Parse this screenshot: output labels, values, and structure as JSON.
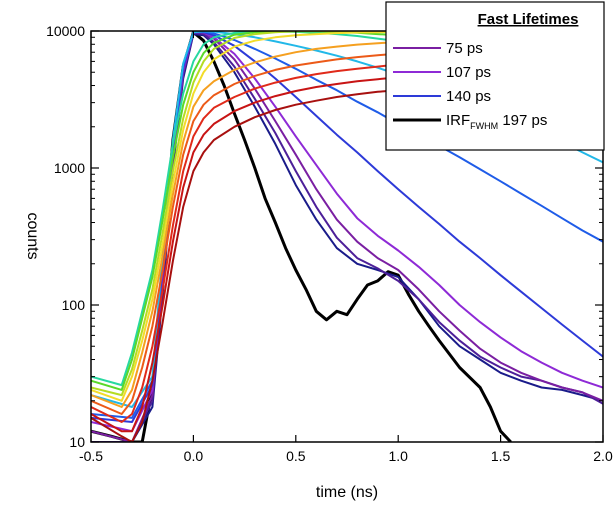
{
  "chart_data": {
    "type": "line",
    "title": "",
    "xlabel": "time (ns)",
    "ylabel": "counts",
    "x_scale": "linear",
    "y_scale": "log",
    "xlim": [
      -0.5,
      2.0
    ],
    "ylim": [
      10,
      10000
    ],
    "x_ticks": [
      "-0.5",
      "0.0",
      "0.5",
      "1.0",
      "1.5",
      "2.0"
    ],
    "y_ticks": [
      "10",
      "100",
      "1000",
      "10000"
    ],
    "grid": false,
    "legend": {
      "title": "Fast Lifetimes",
      "placement": "top-right",
      "entries": [
        {
          "label": "75 ps",
          "sub": "",
          "suffix": "",
          "color": "#7a1fa2"
        },
        {
          "label": "107 ps",
          "sub": "",
          "suffix": "",
          "color": "#8e2ad6"
        },
        {
          "label": "140 ps",
          "sub": "",
          "suffix": "",
          "color": "#2d3ad8"
        },
        {
          "label": "IRF",
          "sub": "FWHM",
          "suffix": " 197 ps",
          "color": "#000000"
        }
      ]
    },
    "series": [
      {
        "color": "#000000",
        "width": 3,
        "x": [
          -0.5,
          -0.4,
          -0.3,
          -0.25,
          -0.2,
          -0.15,
          -0.1,
          -0.05,
          0.0,
          0.05,
          0.1,
          0.15,
          0.2,
          0.25,
          0.3,
          0.35,
          0.4,
          0.45,
          0.5,
          0.55,
          0.6,
          0.65,
          0.7,
          0.75,
          0.8,
          0.85,
          0.9,
          0.95,
          1.0,
          1.05,
          1.1,
          1.15,
          1.2,
          1.3,
          1.4,
          1.45,
          1.5,
          1.55
        ],
        "y": [
          12,
          11,
          10,
          10,
          25,
          200,
          1600,
          5500,
          9800,
          8500,
          6000,
          4000,
          2500,
          1600,
          1000,
          600,
          400,
          260,
          180,
          130,
          90,
          78,
          90,
          85,
          110,
          140,
          150,
          175,
          165,
          120,
          90,
          70,
          55,
          35,
          25,
          18,
          12,
          10
        ]
      },
      {
        "color": "#1a1b8a",
        "width": 2,
        "x": [
          -0.5,
          -0.3,
          -0.2,
          -0.15,
          -0.1,
          -0.05,
          0.0,
          0.05,
          0.1,
          0.2,
          0.3,
          0.4,
          0.5,
          0.6,
          0.7,
          0.8,
          0.9,
          1.0,
          1.1,
          1.2,
          1.3,
          1.4,
          1.5,
          1.6,
          1.7,
          1.8,
          1.9,
          2.0
        ],
        "y": [
          10,
          10,
          18,
          120,
          1000,
          4500,
          9500,
          9300,
          8000,
          5000,
          2800,
          1500,
          750,
          420,
          260,
          200,
          180,
          160,
          110,
          70,
          50,
          40,
          32,
          28,
          25,
          24,
          22,
          20
        ]
      },
      {
        "color": "#4d1f99",
        "width": 2,
        "x": [
          -0.5,
          -0.3,
          -0.2,
          -0.15,
          -0.1,
          -0.05,
          0.0,
          0.05,
          0.1,
          0.2,
          0.3,
          0.4,
          0.5,
          0.6,
          0.7,
          0.8,
          0.9,
          1.0,
          1.1,
          1.2,
          1.3,
          1.4,
          1.5,
          1.6,
          1.7,
          1.8,
          1.9,
          2.0
        ],
        "y": [
          10,
          10,
          20,
          140,
          1100,
          4800,
          9700,
          9500,
          8300,
          5500,
          3200,
          1800,
          950,
          520,
          310,
          220,
          185,
          150,
          110,
          75,
          55,
          42,
          35,
          30,
          28,
          25,
          23,
          19
        ]
      },
      {
        "color": "#7a1fa2",
        "width": 2,
        "x": [
          -0.5,
          -0.3,
          -0.2,
          -0.15,
          -0.1,
          -0.05,
          0.0,
          0.05,
          0.1,
          0.2,
          0.3,
          0.4,
          0.5,
          0.6,
          0.7,
          0.8,
          0.9,
          1.0,
          1.1,
          1.2,
          1.3,
          1.4,
          1.5,
          1.6,
          1.7,
          1.8,
          1.9,
          2.0
        ],
        "y": [
          12,
          10,
          22,
          160,
          1200,
          5000,
          9800,
          9700,
          8800,
          6200,
          3800,
          2200,
          1250,
          700,
          420,
          290,
          220,
          180,
          130,
          90,
          65,
          48,
          38,
          32,
          28,
          25,
          23,
          20
        ]
      },
      {
        "color": "#8e2ad6",
        "width": 2,
        "x": [
          -0.5,
          -0.3,
          -0.2,
          -0.15,
          -0.1,
          -0.05,
          0.0,
          0.05,
          0.1,
          0.2,
          0.3,
          0.4,
          0.5,
          0.6,
          0.7,
          0.8,
          0.9,
          1.0,
          1.1,
          1.2,
          1.3,
          1.4,
          1.5,
          1.6,
          1.7,
          1.8,
          1.9,
          2.0
        ],
        "y": [
          14,
          12,
          24,
          180,
          1300,
          5200,
          9800,
          9750,
          9000,
          6800,
          4500,
          2800,
          1700,
          1050,
          650,
          430,
          320,
          250,
          190,
          140,
          100,
          75,
          58,
          46,
          38,
          32,
          28,
          25
        ]
      },
      {
        "color": "#2d3ad8",
        "width": 2,
        "x": [
          -0.5,
          -0.3,
          -0.2,
          -0.15,
          -0.1,
          -0.05,
          0.0,
          0.05,
          0.1,
          0.2,
          0.3,
          0.4,
          0.5,
          0.6,
          0.7,
          0.8,
          0.9,
          1.0,
          1.1,
          1.2,
          1.3,
          1.4,
          1.5,
          1.6,
          1.7,
          1.8,
          1.9,
          2.0
        ],
        "y": [
          15,
          14,
          26,
          200,
          1400,
          5400,
          9800,
          9800,
          9300,
          7800,
          6000,
          4500,
          3300,
          2400,
          1750,
          1300,
          950,
          700,
          520,
          390,
          290,
          220,
          165,
          125,
          95,
          72,
          55,
          42
        ]
      },
      {
        "color": "#1f5ce8",
        "width": 2,
        "x": [
          -0.5,
          -0.3,
          -0.2,
          -0.15,
          -0.1,
          -0.05,
          0.0,
          0.05,
          0.1,
          0.2,
          0.3,
          0.4,
          0.5,
          0.6,
          0.7,
          0.8,
          0.9,
          1.0,
          1.1,
          1.2,
          1.3,
          1.4,
          1.5,
          1.6,
          1.7,
          1.8,
          1.9,
          2.0
        ],
        "y": [
          16,
          15,
          28,
          220,
          1500,
          5600,
          9800,
          9900,
          9600,
          8600,
          7400,
          6300,
          5300,
          4400,
          3700,
          3050,
          2550,
          2100,
          1750,
          1450,
          1200,
          980,
          800,
          650,
          530,
          430,
          350,
          290
        ]
      },
      {
        "color": "#22b8e8",
        "width": 2,
        "x": [
          -0.5,
          -0.3,
          -0.2,
          -0.15,
          -0.1,
          -0.05,
          0.0,
          0.05,
          0.1,
          0.2,
          0.3,
          0.4,
          0.5,
          0.6,
          0.7,
          0.8,
          0.9,
          1.0,
          1.1,
          1.2,
          1.3,
          1.4,
          1.5,
          1.6,
          1.7,
          1.8,
          1.9,
          2.0
        ],
        "y": [
          22,
          18,
          30,
          240,
          1600,
          5800,
          9800,
          9950,
          9900,
          9500,
          9000,
          8400,
          7800,
          7200,
          6600,
          6000,
          5400,
          4800,
          4300,
          3800,
          3300,
          2850,
          2450,
          2100,
          1800,
          1550,
          1300,
          1100
        ]
      },
      {
        "color": "#27d8a0",
        "width": 2,
        "x": [
          -0.5,
          -0.35,
          -0.3,
          -0.25,
          -0.2,
          -0.15,
          -0.1,
          -0.05,
          0.0,
          0.05,
          0.1,
          0.2,
          0.3,
          0.4,
          0.5,
          0.6,
          0.7,
          0.8,
          0.9,
          1.0,
          1.2,
          1.4,
          1.6,
          1.8,
          2.0
        ],
        "y": [
          30,
          26,
          45,
          90,
          180,
          500,
          1500,
          3500,
          6000,
          8000,
          9000,
          9700,
          9900,
          9900,
          9850,
          9700,
          9500,
          9200,
          8800,
          8400,
          7600,
          6800,
          6000,
          5300,
          4700
        ]
      },
      {
        "color": "#5ad82a",
        "width": 2,
        "x": [
          -0.5,
          -0.35,
          -0.3,
          -0.25,
          -0.2,
          -0.15,
          -0.1,
          -0.05,
          0.0,
          0.05,
          0.1,
          0.2,
          0.3,
          0.4,
          0.5,
          0.6,
          0.7,
          0.8,
          0.9,
          1.0,
          1.2,
          1.4,
          1.6,
          1.8,
          2.0
        ],
        "y": [
          28,
          24,
          40,
          80,
          160,
          420,
          1200,
          2900,
          5000,
          6900,
          8200,
          9400,
          9800,
          9950,
          9980,
          9950,
          9850,
          9700,
          9500,
          9300,
          8900,
          8400,
          7900,
          7400,
          6900
        ]
      },
      {
        "color": "#b5dc22",
        "width": 2,
        "x": [
          -0.5,
          -0.35,
          -0.3,
          -0.25,
          -0.2,
          -0.15,
          -0.1,
          -0.05,
          0.0,
          0.05,
          0.1,
          0.2,
          0.3,
          0.4,
          0.5,
          0.6,
          0.7,
          0.8,
          0.9,
          1.0,
          1.2,
          1.4,
          1.6,
          1.8,
          2.0
        ],
        "y": [
          25,
          22,
          34,
          65,
          130,
          340,
          950,
          2300,
          4200,
          6000,
          7400,
          8900,
          9500,
          9800,
          9950,
          9980,
          9990,
          9950,
          9900,
          9850,
          9700,
          9500,
          9300,
          9100,
          8900
        ]
      },
      {
        "color": "#f2dc2a",
        "width": 2,
        "x": [
          -0.5,
          -0.35,
          -0.3,
          -0.25,
          -0.2,
          -0.15,
          -0.1,
          -0.05,
          0.0,
          0.05,
          0.1,
          0.2,
          0.3,
          0.4,
          0.5,
          0.6,
          0.7,
          0.8,
          0.9,
          1.0,
          1.2,
          1.4,
          1.6,
          1.8,
          2.0
        ],
        "y": [
          24,
          20,
          30,
          55,
          110,
          280,
          780,
          1900,
          3500,
          5000,
          6200,
          7700,
          8500,
          9000,
          9300,
          9500,
          9650,
          9750,
          9800,
          9850,
          9900,
          9900,
          9900,
          9850,
          9800
        ]
      },
      {
        "color": "#f5a020",
        "width": 2,
        "x": [
          -0.5,
          -0.35,
          -0.3,
          -0.25,
          -0.2,
          -0.15,
          -0.1,
          -0.05,
          0.0,
          0.05,
          0.1,
          0.2,
          0.3,
          0.4,
          0.5,
          0.6,
          0.7,
          0.8,
          0.9,
          1.0,
          1.2,
          1.4,
          1.6,
          1.8,
          2.0
        ],
        "y": [
          22,
          18,
          24,
          45,
          90,
          230,
          640,
          1550,
          2800,
          3700,
          4300,
          5200,
          5900,
          6500,
          7000,
          7400,
          7700,
          7950,
          8150,
          8300,
          8600,
          8800,
          8950,
          9050,
          9150
        ]
      },
      {
        "color": "#ec5a18",
        "width": 2,
        "x": [
          -0.5,
          -0.35,
          -0.3,
          -0.25,
          -0.2,
          -0.15,
          -0.1,
          -0.05,
          0.0,
          0.05,
          0.1,
          0.2,
          0.3,
          0.4,
          0.5,
          0.6,
          0.7,
          0.8,
          0.9,
          1.0,
          1.2,
          1.4,
          1.6,
          1.8,
          2.0
        ],
        "y": [
          20,
          16,
          20,
          35,
          70,
          180,
          520,
          1250,
          2200,
          2900,
          3400,
          4100,
          4700,
          5200,
          5600,
          5900,
          6200,
          6450,
          6650,
          6850,
          7150,
          7400,
          7600,
          7800,
          7950
        ]
      },
      {
        "color": "#e02a1a",
        "width": 2,
        "x": [
          -0.5,
          -0.35,
          -0.3,
          -0.25,
          -0.2,
          -0.15,
          -0.1,
          -0.05,
          0.0,
          0.05,
          0.1,
          0.2,
          0.3,
          0.4,
          0.5,
          0.6,
          0.7,
          0.8,
          0.9,
          1.0,
          1.2,
          1.4,
          1.6,
          1.8,
          2.0
        ],
        "y": [
          18,
          14,
          16,
          25,
          50,
          130,
          380,
          950,
          1700,
          2300,
          2750,
          3300,
          3800,
          4200,
          4550,
          4850,
          5100,
          5300,
          5500,
          5700,
          6000,
          6250,
          6450,
          6650,
          6800
        ]
      },
      {
        "color": "#c81414",
        "width": 2,
        "x": [
          -0.5,
          -0.35,
          -0.3,
          -0.25,
          -0.2,
          -0.15,
          -0.1,
          -0.05,
          0.0,
          0.05,
          0.1,
          0.2,
          0.3,
          0.4,
          0.5,
          0.6,
          0.7,
          0.8,
          0.9,
          1.0,
          1.2,
          1.4,
          1.6,
          1.8,
          2.0
        ],
        "y": [
          16,
          12,
          12,
          18,
          38,
          100,
          290,
          720,
          1300,
          1750,
          2100,
          2600,
          3000,
          3350,
          3650,
          3900,
          4100,
          4300,
          4450,
          4600,
          4850,
          5050,
          5200,
          5350,
          5500
        ]
      },
      {
        "color": "#a8100f",
        "width": 2,
        "x": [
          -0.5,
          -0.35,
          -0.3,
          -0.25,
          -0.2,
          -0.15,
          -0.1,
          -0.05,
          0.0,
          0.05,
          0.1,
          0.2,
          0.3,
          0.4,
          0.5,
          0.6,
          0.7,
          0.8,
          0.9,
          1.0,
          1.2,
          1.4,
          1.6,
          1.8,
          2.0
        ],
        "y": [
          15,
          11,
          10,
          14,
          28,
          75,
          210,
          520,
          950,
          1300,
          1600,
          2000,
          2350,
          2650,
          2900,
          3100,
          3300,
          3450,
          3600,
          3700,
          3900,
          4050,
          4200,
          4300,
          4400
        ]
      }
    ]
  }
}
